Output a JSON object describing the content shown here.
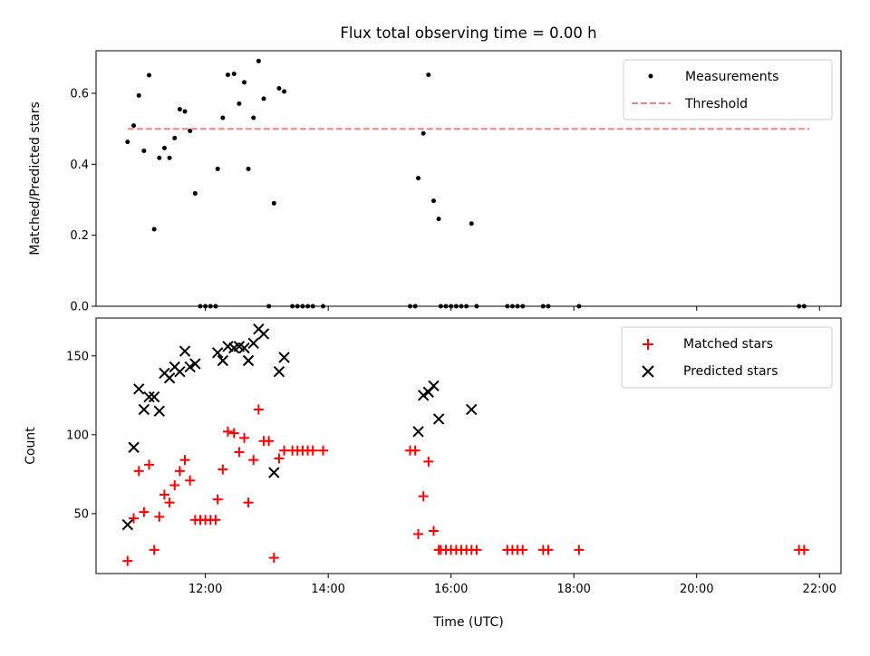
{
  "chart_data": [
    {
      "type": "scatter",
      "title": "Flux total observing time = 0.00 h",
      "xlabel": "",
      "ylabel": "Matched/Predicted stars",
      "xlim_hours": [
        10.22,
        22.35
      ],
      "ylim": [
        0,
        0.72
      ],
      "yticks": [
        0.0,
        0.2,
        0.4,
        0.6
      ],
      "ytick_labels": [
        "0.0",
        "0.2",
        "0.4",
        "0.6"
      ],
      "xticks_hours": [
        12,
        14,
        16,
        18,
        20,
        22
      ],
      "legend_position": "top-right",
      "series": [
        {
          "name": "Measurements",
          "kind": "point",
          "color": "#000000",
          "points": [
            [
              "10:44",
              0.463
            ],
            [
              "10:50",
              0.509
            ],
            [
              "10:55",
              0.594
            ],
            [
              "11:00",
              0.438
            ],
            [
              "11:05",
              0.651
            ],
            [
              "11:10",
              0.217
            ],
            [
              "11:15",
              0.418
            ],
            [
              "11:20",
              0.446
            ],
            [
              "11:25",
              0.418
            ],
            [
              "11:30",
              0.474
            ],
            [
              "11:35",
              0.555
            ],
            [
              "11:40",
              0.549
            ],
            [
              "11:45",
              0.494
            ],
            [
              "11:50",
              0.318
            ],
            [
              "11:55",
              0.0
            ],
            [
              "12:00",
              0.0
            ],
            [
              "12:05",
              0.0
            ],
            [
              "12:10",
              0.0
            ],
            [
              "12:12",
              0.387
            ],
            [
              "12:17",
              0.531
            ],
            [
              "12:22",
              0.652
            ],
            [
              "12:28",
              0.655
            ],
            [
              "12:33",
              0.571
            ],
            [
              "12:38",
              0.631
            ],
            [
              "12:42",
              0.387
            ],
            [
              "12:47",
              0.531
            ],
            [
              "12:52",
              0.691
            ],
            [
              "12:57",
              0.585
            ],
            [
              "13:02",
              0.0
            ],
            [
              "13:07",
              0.29
            ],
            [
              "13:12",
              0.614
            ],
            [
              "13:17",
              0.605
            ],
            [
              "13:25",
              0.0
            ],
            [
              "13:30",
              0.0
            ],
            [
              "13:35",
              0.0
            ],
            [
              "13:40",
              0.0
            ],
            [
              "13:45",
              0.0
            ],
            [
              "13:55",
              0.0
            ],
            [
              "15:20",
              0.0
            ],
            [
              "15:25",
              0.0
            ],
            [
              "15:28",
              0.361
            ],
            [
              "15:33",
              0.487
            ],
            [
              "15:38",
              0.652
            ],
            [
              "15:43",
              0.297
            ],
            [
              "15:48",
              0.246
            ],
            [
              "15:50",
              0.0
            ],
            [
              "15:55",
              0.0
            ],
            [
              "16:00",
              0.0
            ],
            [
              "16:05",
              0.0
            ],
            [
              "16:10",
              0.0
            ],
            [
              "16:15",
              0.0
            ],
            [
              "16:20",
              0.233
            ],
            [
              "16:25",
              0.0
            ],
            [
              "16:55",
              0.0
            ],
            [
              "17:00",
              0.0
            ],
            [
              "17:05",
              0.0
            ],
            [
              "17:10",
              0.0
            ],
            [
              "17:30",
              0.0
            ],
            [
              "17:35",
              0.0
            ],
            [
              "18:05",
              0.0
            ],
            [
              "21:40",
              0.0
            ],
            [
              "21:45",
              0.0
            ]
          ]
        },
        {
          "name": "Threshold",
          "kind": "dashed-line",
          "color": "#ff7f7f",
          "points": [
            [
              "10:44",
              0.5
            ],
            [
              "21:50",
              0.5
            ]
          ]
        }
      ]
    },
    {
      "type": "scatter",
      "title": "",
      "xlabel": "Time (UTC)",
      "ylabel": "Count",
      "xlim_hours": [
        10.22,
        22.35
      ],
      "ylim": [
        12,
        174
      ],
      "yticks": [
        50,
        100,
        150
      ],
      "ytick_labels": [
        "50",
        "100",
        "150"
      ],
      "xticks_hours": [
        12,
        14,
        16,
        18,
        20,
        22
      ],
      "xtick_labels": [
        "12:00",
        "14:00",
        "16:00",
        "18:00",
        "20:00",
        "22:00"
      ],
      "legend_position": "top-right",
      "series": [
        {
          "name": "Matched stars",
          "kind": "plus",
          "color": "#ff0000",
          "points": [
            [
              "10:44",
              20
            ],
            [
              "10:50",
              47
            ],
            [
              "10:55",
              77
            ],
            [
              "11:00",
              51
            ],
            [
              "11:05",
              81
            ],
            [
              "11:10",
              27
            ],
            [
              "11:15",
              48
            ],
            [
              "11:20",
              62
            ],
            [
              "11:25",
              57
            ],
            [
              "11:30",
              68
            ],
            [
              "11:35",
              77
            ],
            [
              "11:40",
              84
            ],
            [
              "11:45",
              71
            ],
            [
              "11:50",
              46
            ],
            [
              "11:55",
              46
            ],
            [
              "12:00",
              46
            ],
            [
              "12:05",
              46
            ],
            [
              "12:10",
              46
            ],
            [
              "12:12",
              59
            ],
            [
              "12:17",
              78
            ],
            [
              "12:22",
              102
            ],
            [
              "12:28",
              101
            ],
            [
              "12:33",
              89
            ],
            [
              "12:38",
              98
            ],
            [
              "12:42",
              57
            ],
            [
              "12:47",
              84
            ],
            [
              "12:52",
              116
            ],
            [
              "12:57",
              96
            ],
            [
              "13:02",
              96
            ],
            [
              "13:07",
              22
            ],
            [
              "13:12",
              85
            ],
            [
              "13:17",
              90
            ],
            [
              "13:25",
              90
            ],
            [
              "13:30",
              90
            ],
            [
              "13:35",
              90
            ],
            [
              "13:40",
              90
            ],
            [
              "13:45",
              90
            ],
            [
              "13:55",
              90
            ],
            [
              "15:20",
              90
            ],
            [
              "15:25",
              90
            ],
            [
              "15:28",
              37
            ],
            [
              "15:33",
              61
            ],
            [
              "15:38",
              83
            ],
            [
              "15:43",
              39
            ],
            [
              "15:48",
              27
            ],
            [
              "15:50",
              27
            ],
            [
              "15:55",
              27
            ],
            [
              "16:00",
              27
            ],
            [
              "16:05",
              27
            ],
            [
              "16:10",
              27
            ],
            [
              "16:15",
              27
            ],
            [
              "16:20",
              27
            ],
            [
              "16:25",
              27
            ],
            [
              "16:55",
              27
            ],
            [
              "17:00",
              27
            ],
            [
              "17:05",
              27
            ],
            [
              "17:10",
              27
            ],
            [
              "17:30",
              27
            ],
            [
              "17:35",
              27
            ],
            [
              "18:05",
              27
            ],
            [
              "21:40",
              27
            ],
            [
              "21:45",
              27
            ]
          ]
        },
        {
          "name": "Predicted stars",
          "kind": "cross",
          "color": "#000000",
          "points": [
            [
              "10:44",
              43
            ],
            [
              "10:50",
              92
            ],
            [
              "10:55",
              129
            ],
            [
              "11:00",
              116
            ],
            [
              "11:05",
              124
            ],
            [
              "11:10",
              124
            ],
            [
              "11:15",
              115
            ],
            [
              "11:20",
              139
            ],
            [
              "11:25",
              136
            ],
            [
              "11:30",
              143
            ],
            [
              "11:35",
              140
            ],
            [
              "11:40",
              153
            ],
            [
              "11:45",
              143
            ],
            [
              "11:50",
              145
            ],
            [
              "12:12",
              152
            ],
            [
              "12:17",
              147
            ],
            [
              "12:22",
              156
            ],
            [
              "12:28",
              155
            ],
            [
              "12:33",
              156
            ],
            [
              "12:38",
              155
            ],
            [
              "12:42",
              147
            ],
            [
              "12:47",
              158
            ],
            [
              "12:52",
              167
            ],
            [
              "12:57",
              164
            ],
            [
              "13:07",
              76
            ],
            [
              "13:12",
              140
            ],
            [
              "13:17",
              149
            ],
            [
              "15:28",
              102
            ],
            [
              "15:33",
              125
            ],
            [
              "15:38",
              127
            ],
            [
              "15:43",
              131
            ],
            [
              "15:48",
              110
            ],
            [
              "16:20",
              116
            ]
          ]
        }
      ]
    }
  ]
}
